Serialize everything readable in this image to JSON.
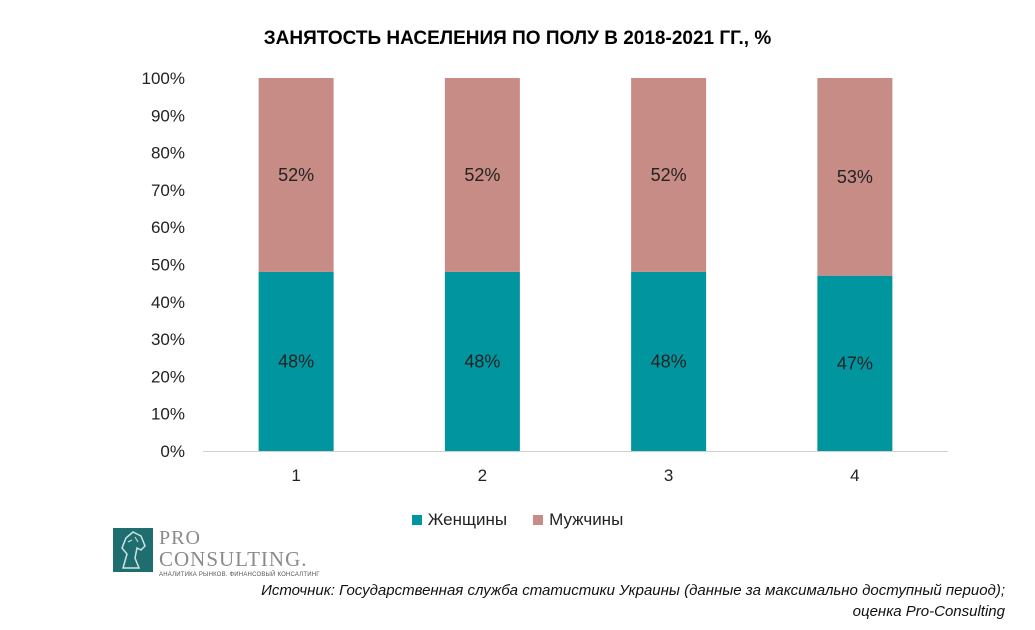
{
  "chart_data": {
    "type": "bar",
    "stacked": true,
    "title": "ЗАНЯТОСТЬ НАСЕЛЕНИЯ ПО ПОЛУ В 2018-2021 ГГ., %",
    "categories": [
      "1",
      "2",
      "3",
      "4"
    ],
    "series": [
      {
        "name": "Женщины",
        "values": [
          48,
          48,
          48,
          47
        ],
        "labels": [
          "48%",
          "48%",
          "48%",
          "47%"
        ],
        "color": "#00959f"
      },
      {
        "name": "Мужчины",
        "values": [
          52,
          52,
          52,
          53
        ],
        "labels": [
          "52%",
          "52%",
          "52%",
          "53%"
        ],
        "color": "#c78c85"
      }
    ],
    "ylim": [
      0,
      100
    ],
    "yticks": [
      "0%",
      "10%",
      "20%",
      "30%",
      "40%",
      "50%",
      "60%",
      "70%",
      "80%",
      "90%",
      "100%"
    ],
    "grid": false,
    "legend_position": "bottom"
  },
  "logo": {
    "line1": "PRO",
    "line2": "CONSULTING.",
    "tagline": "АНАЛИТИКА РЫНКОВ. ФИНАНСОВЫЙ КОНСАЛТИНГ",
    "icon": "horse-head-icon",
    "color": "#1f6e6f"
  },
  "source": {
    "line1": "Источник: Государственная служба статистики Украины (данные за максимально доступный период);",
    "line2": "оценка Pro-Consulting"
  }
}
